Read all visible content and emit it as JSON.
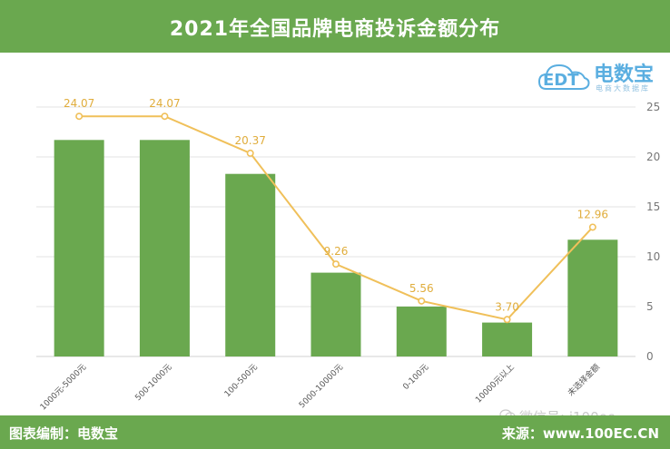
{
  "header": {
    "title": "2021年全国品牌电商投诉金额分布"
  },
  "logo": {
    "mark": "EDT",
    "name": "电数宝",
    "tagline": "电商大数据库"
  },
  "footer": {
    "left": "图表编制：电数宝",
    "right": "来源：www.100EC.CN"
  },
  "watermark": {
    "text": "微信号: i100ec",
    "icon": "wechat-icon"
  },
  "colors": {
    "bar": "#6aa84f",
    "line": "#f0c05a",
    "label": "#e0ad3c",
    "header": "#6aa84f"
  },
  "chart_data": {
    "type": "bar",
    "categories": [
      "1000元-5000元",
      "500-1000元",
      "100-500元",
      "5000-10000元",
      "0-100元",
      "10000元以上",
      "未选择金额"
    ],
    "series": [
      {
        "type": "bar",
        "values": [
          21.7,
          21.7,
          18.3,
          8.4,
          5.0,
          3.4,
          11.7
        ]
      },
      {
        "type": "line",
        "values": [
          24.07,
          24.07,
          20.37,
          9.26,
          5.56,
          3.7,
          12.96
        ],
        "labels": [
          "24.07",
          "24.07",
          "20.37",
          "9.26",
          "5.56",
          "3.70",
          "12.96"
        ]
      }
    ],
    "yticks": [
      "0",
      "5",
      "10",
      "15",
      "20",
      "25"
    ],
    "ylim": [
      0,
      25
    ],
    "y_axis_side": "right",
    "grid": true,
    "legend": "none"
  }
}
